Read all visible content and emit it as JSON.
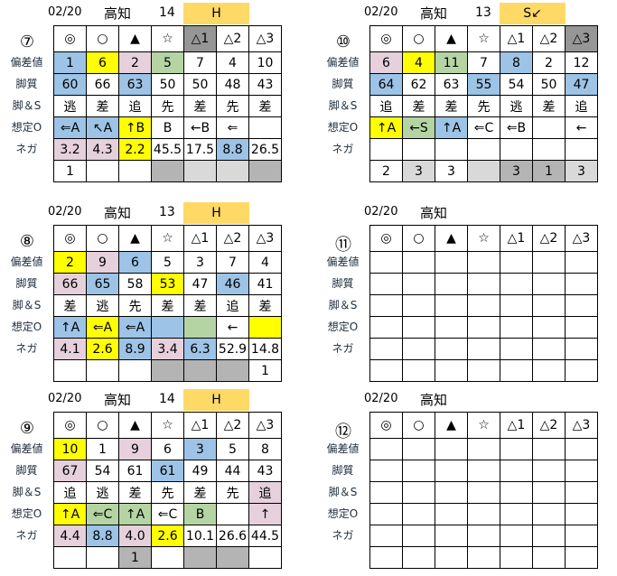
{
  "row_labels": [
    "偏差値",
    "脚質",
    "脚＆S",
    "想定O",
    "ネガ"
  ],
  "marks": [
    "◎",
    "○",
    "▲",
    "☆",
    "△1",
    "△2",
    "△3"
  ],
  "colors": {
    "b": "#9dc3e6",
    "y": "#ffff00",
    "p": "#e6d0dc",
    "g": "#b4d5a3",
    "d": "#b4b4b4",
    "l": "#d9d9d9",
    "k": "#969696",
    "grade": "#ffd966"
  },
  "races": [
    {
      "race": "⑦",
      "date": "02/20",
      "place": "高知",
      "count": "14",
      "grade": "H",
      "mark_bg": [
        null,
        null,
        null,
        null,
        "k",
        null,
        null
      ],
      "rows": [
        [
          [
            "1",
            "b"
          ],
          [
            "6",
            "y"
          ],
          [
            "2",
            "p"
          ],
          [
            "5",
            "g"
          ],
          [
            "7",
            null
          ],
          [
            "4",
            null
          ],
          [
            "10",
            null
          ]
        ],
        [
          [
            "60",
            "b"
          ],
          [
            "66",
            null
          ],
          [
            "63",
            "b"
          ],
          [
            "50",
            null
          ],
          [
            "50",
            null
          ],
          [
            "48",
            null
          ],
          [
            "43",
            null
          ]
        ],
        [
          [
            "逃",
            null
          ],
          [
            "差",
            null
          ],
          [
            "追",
            null
          ],
          [
            "先",
            null
          ],
          [
            "差",
            null
          ],
          [
            "先",
            null
          ],
          [
            "差",
            null
          ]
        ],
        [
          [
            "⇐A",
            "b"
          ],
          [
            "↖A",
            "b"
          ],
          [
            "↑B",
            "y"
          ],
          [
            "B",
            null
          ],
          [
            "←B",
            null
          ],
          [
            "⇐",
            null
          ],
          [
            "",
            null
          ]
        ],
        [
          [
            "3.2",
            "p"
          ],
          [
            "4.3",
            "p"
          ],
          [
            "2.2",
            "y"
          ],
          [
            "45.5",
            null
          ],
          [
            "17.5",
            null
          ],
          [
            "8.8",
            "b"
          ],
          [
            "26.5",
            null
          ]
        ],
        [
          [
            "1",
            null
          ],
          [
            "",
            null
          ],
          [
            "",
            null
          ],
          [
            "",
            "d"
          ],
          [
            "",
            "l"
          ],
          [
            "",
            "l"
          ],
          [
            "",
            "d"
          ]
        ]
      ]
    },
    {
      "race": "⑩",
      "date": "02/20",
      "place": "高知",
      "count": "13",
      "grade": "S↙",
      "mark_bg": [
        null,
        null,
        null,
        null,
        null,
        null,
        "k"
      ],
      "rows": [
        [
          [
            "6",
            "p"
          ],
          [
            "4",
            "y"
          ],
          [
            "11",
            "g"
          ],
          [
            "7",
            null
          ],
          [
            "8",
            "b"
          ],
          [
            "2",
            null
          ],
          [
            "12",
            null
          ]
        ],
        [
          [
            "64",
            "b"
          ],
          [
            "62",
            null
          ],
          [
            "63",
            null
          ],
          [
            "55",
            "b"
          ],
          [
            "54",
            null
          ],
          [
            "50",
            null
          ],
          [
            "47",
            "b"
          ]
        ],
        [
          [
            "追",
            null
          ],
          [
            "差",
            null
          ],
          [
            "差",
            null
          ],
          [
            "先",
            null
          ],
          [
            "逃",
            null
          ],
          [
            "差",
            null
          ],
          [
            "追",
            null
          ]
        ],
        [
          [
            "↑A",
            "y"
          ],
          [
            "←S",
            "g"
          ],
          [
            "↑A",
            "b"
          ],
          [
            "⇐C",
            null
          ],
          [
            "⇐B",
            null
          ],
          [
            "",
            null
          ],
          [
            "←",
            null
          ]
        ],
        [
          [
            "",
            null
          ],
          [
            "",
            null
          ],
          [
            "",
            null
          ],
          [
            "",
            null
          ],
          [
            "",
            null
          ],
          [
            "",
            null
          ],
          [
            "",
            null
          ]
        ],
        [
          [
            "2",
            null
          ],
          [
            "3",
            "l"
          ],
          [
            "3",
            null
          ],
          [
            "",
            "l"
          ],
          [
            "3",
            "d"
          ],
          [
            "1",
            "d"
          ],
          [
            "3",
            "l"
          ]
        ]
      ]
    },
    {
      "race": "⑧",
      "date": "02/20",
      "place": "高知",
      "count": "13",
      "grade": "H",
      "mark_bg": [
        null,
        null,
        null,
        null,
        null,
        null,
        null
      ],
      "rows": [
        [
          [
            "2",
            "y"
          ],
          [
            "9",
            "p"
          ],
          [
            "6",
            "b"
          ],
          [
            "5",
            null
          ],
          [
            "3",
            null
          ],
          [
            "7",
            null
          ],
          [
            "4",
            null
          ]
        ],
        [
          [
            "66",
            "p"
          ],
          [
            "65",
            "b"
          ],
          [
            "58",
            null
          ],
          [
            "53",
            "y"
          ],
          [
            "47",
            null
          ],
          [
            "46",
            "b"
          ],
          [
            "41",
            null
          ]
        ],
        [
          [
            "差",
            null
          ],
          [
            "逃",
            null
          ],
          [
            "先",
            null
          ],
          [
            "差",
            null
          ],
          [
            "差",
            null
          ],
          [
            "追",
            null
          ],
          [
            "差",
            null
          ]
        ],
        [
          [
            "↑A",
            "b"
          ],
          [
            "⇐A",
            "y"
          ],
          [
            "⇐A",
            "b"
          ],
          [
            "",
            "b"
          ],
          [
            "",
            "g"
          ],
          [
            "←",
            null
          ],
          [
            "",
            "y"
          ]
        ],
        [
          [
            "4.1",
            "p"
          ],
          [
            "2.6",
            "y"
          ],
          [
            "8.9",
            "b"
          ],
          [
            "3.4",
            "p"
          ],
          [
            "6.3",
            "b"
          ],
          [
            "52.9",
            null
          ],
          [
            "14.8",
            null
          ]
        ],
        [
          [
            "",
            null
          ],
          [
            "",
            null
          ],
          [
            "",
            null
          ],
          [
            "",
            "d"
          ],
          [
            "",
            "d"
          ],
          [
            "",
            "d"
          ],
          [
            "1",
            null
          ]
        ]
      ]
    },
    {
      "race": "⑪",
      "date": "02/20",
      "place": "高知",
      "count": "",
      "grade": "",
      "mark_bg": [
        null,
        null,
        null,
        null,
        null,
        null,
        null
      ],
      "rows": []
    },
    {
      "race": "⑨",
      "date": "02/20",
      "place": "高知",
      "count": "14",
      "grade": "H",
      "mark_bg": [
        null,
        null,
        null,
        null,
        null,
        null,
        null
      ],
      "rows": [
        [
          [
            "10",
            "y"
          ],
          [
            "1",
            null
          ],
          [
            "9",
            "p"
          ],
          [
            "6",
            null
          ],
          [
            "3",
            "b"
          ],
          [
            "5",
            null
          ],
          [
            "8",
            null
          ]
        ],
        [
          [
            "67",
            "p"
          ],
          [
            "54",
            null
          ],
          [
            "61",
            null
          ],
          [
            "61",
            "b"
          ],
          [
            "49",
            null
          ],
          [
            "44",
            null
          ],
          [
            "43",
            null
          ]
        ],
        [
          [
            "追",
            null
          ],
          [
            "逃",
            null
          ],
          [
            "差",
            null
          ],
          [
            "先",
            null
          ],
          [
            "差",
            null
          ],
          [
            "先",
            null
          ],
          [
            "追",
            "p"
          ]
        ],
        [
          [
            "↑A",
            "y"
          ],
          [
            "⇐C",
            "g"
          ],
          [
            "↑A",
            "g"
          ],
          [
            "⇐C",
            null
          ],
          [
            "B",
            "g"
          ],
          [
            "",
            null
          ],
          [
            "↑",
            "p"
          ]
        ],
        [
          [
            "4.4",
            "p"
          ],
          [
            "8.8",
            "b"
          ],
          [
            "4.0",
            "p"
          ],
          [
            "2.6",
            "y"
          ],
          [
            "10.1",
            null
          ],
          [
            "26.6",
            null
          ],
          [
            "44.5",
            null
          ]
        ],
        [
          [
            "",
            null
          ],
          [
            "",
            null
          ],
          [
            "1",
            "d"
          ],
          [
            "",
            null
          ],
          [
            "",
            "d"
          ],
          [
            "",
            "d"
          ],
          [
            "",
            null
          ]
        ]
      ]
    },
    {
      "race": "⑫",
      "date": "02/20",
      "place": "高知",
      "count": "",
      "grade": "",
      "mark_bg": [
        null,
        null,
        null,
        null,
        null,
        null,
        null
      ],
      "rows": []
    }
  ]
}
